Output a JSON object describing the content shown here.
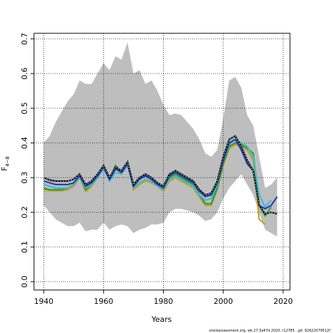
{
  "chart_data": {
    "type": "line",
    "xlabel": "Years",
    "ylabel": "F",
    "ylabel_sub": "4−8",
    "footer": "stockassessment.org, wk.27.3a47d   2020, r12785 , git: 62622079512f",
    "xlim": [
      1936.75,
      2022.3
    ],
    "ylim": [
      -0.024,
      0.716
    ],
    "xticks": [
      1940,
      1960,
      1980,
      2000,
      2020
    ],
    "yticks": [
      {
        "value": 0,
        "label": "0.0"
      },
      0.1,
      0.2,
      0.3,
      0.4,
      0.5,
      0.6,
      0.7
    ],
    "grid": true,
    "x": [
      1940,
      1942,
      1944,
      1946,
      1948,
      1950,
      1952,
      1954,
      1956,
      1958,
      1960,
      1962,
      1964,
      1966,
      1968,
      1970,
      1972,
      1974,
      1976,
      1978,
      1980,
      1982,
      1984,
      1986,
      1988,
      1990,
      1992,
      1994,
      1996,
      1998,
      2000,
      2002,
      2004,
      2006,
      2008,
      2010,
      2012,
      2014,
      2016,
      2018
    ],
    "band": {
      "color": "#bebebe",
      "upper": [
        0.4,
        0.42,
        0.46,
        0.49,
        0.52,
        0.54,
        0.58,
        0.57,
        0.57,
        0.6,
        0.63,
        0.61,
        0.65,
        0.64,
        0.69,
        0.6,
        0.61,
        0.57,
        0.58,
        0.55,
        0.51,
        0.48,
        0.485,
        0.48,
        0.46,
        0.44,
        0.41,
        0.37,
        0.36,
        0.38,
        0.47,
        0.58,
        0.59,
        0.56,
        0.48,
        0.45,
        0.36,
        0.27,
        0.28,
        0.3
      ],
      "lower": [
        0.22,
        0.2,
        0.18,
        0.17,
        0.16,
        0.16,
        0.17,
        0.145,
        0.15,
        0.15,
        0.17,
        0.15,
        0.16,
        0.165,
        0.16,
        0.14,
        0.15,
        0.155,
        0.165,
        0.165,
        0.17,
        0.2,
        0.21,
        0.21,
        0.205,
        0.2,
        0.19,
        0.175,
        0.18,
        0.2,
        0.24,
        0.27,
        0.29,
        0.31,
        0.28,
        0.25,
        0.2,
        0.15,
        0.14,
        0.13
      ]
    },
    "series": [
      {
        "color": "#c2a21a",
        "values": [
          0.265,
          0.262,
          0.262,
          0.262,
          0.265,
          0.275,
          0.3,
          0.26,
          0.275,
          0.3,
          0.325,
          0.295,
          0.33,
          0.31,
          0.345,
          0.265,
          0.28,
          0.29,
          0.285,
          0.275,
          0.26,
          0.29,
          0.3,
          0.29,
          0.28,
          0.27,
          0.245,
          0.22,
          0.22,
          0.265,
          0.335,
          0.385,
          0.395,
          0.39,
          0.38,
          0.35,
          0.18,
          0.165,
          null,
          null
        ]
      },
      {
        "color": "#2e9c3a",
        "values": [
          0.27,
          0.265,
          0.265,
          0.265,
          0.27,
          0.28,
          0.305,
          0.265,
          0.28,
          0.3,
          0.33,
          0.295,
          0.335,
          0.315,
          0.345,
          0.27,
          0.285,
          0.295,
          0.29,
          0.28,
          0.27,
          0.3,
          0.31,
          0.3,
          0.29,
          0.28,
          0.25,
          0.225,
          0.225,
          0.27,
          0.34,
          0.39,
          0.4,
          0.395,
          0.385,
          0.37,
          0.22,
          0.19,
          0.215,
          null
        ]
      },
      {
        "color": "#3fb9d6",
        "values": [
          0.28,
          0.275,
          0.27,
          0.27,
          0.27,
          0.28,
          0.3,
          0.27,
          0.28,
          0.3,
          0.325,
          0.29,
          0.315,
          0.31,
          0.335,
          0.27,
          0.285,
          0.295,
          0.29,
          0.275,
          0.265,
          0.295,
          0.305,
          0.295,
          0.285,
          0.275,
          0.25,
          0.235,
          0.24,
          0.28,
          0.35,
          0.395,
          0.41,
          0.4,
          0.39,
          0.36,
          0.25,
          0.215,
          0.235,
          null
        ]
      },
      {
        "color": "#2340b8",
        "values": [
          0.29,
          0.285,
          0.28,
          0.28,
          0.28,
          0.285,
          0.305,
          0.275,
          0.285,
          0.305,
          0.33,
          0.295,
          0.325,
          0.315,
          0.34,
          0.275,
          0.295,
          0.305,
          0.295,
          0.28,
          0.27,
          0.305,
          0.315,
          0.305,
          0.295,
          0.285,
          0.26,
          0.245,
          0.25,
          0.285,
          0.35,
          0.4,
          0.41,
          0.38,
          0.34,
          0.32,
          0.22,
          0.21,
          0.22,
          0.245
        ]
      },
      {
        "color": "#000000",
        "values": [
          0.3,
          0.293,
          0.29,
          0.29,
          0.29,
          0.295,
          0.31,
          0.28,
          0.29,
          0.31,
          0.335,
          0.3,
          0.33,
          0.32,
          0.345,
          0.28,
          0.3,
          0.31,
          0.3,
          0.285,
          0.275,
          0.31,
          0.32,
          0.31,
          0.3,
          0.29,
          0.265,
          0.25,
          0.255,
          0.29,
          0.36,
          0.41,
          0.42,
          0.39,
          0.35,
          0.32,
          0.22,
          0.195,
          0.2,
          0.195
        ]
      }
    ]
  }
}
